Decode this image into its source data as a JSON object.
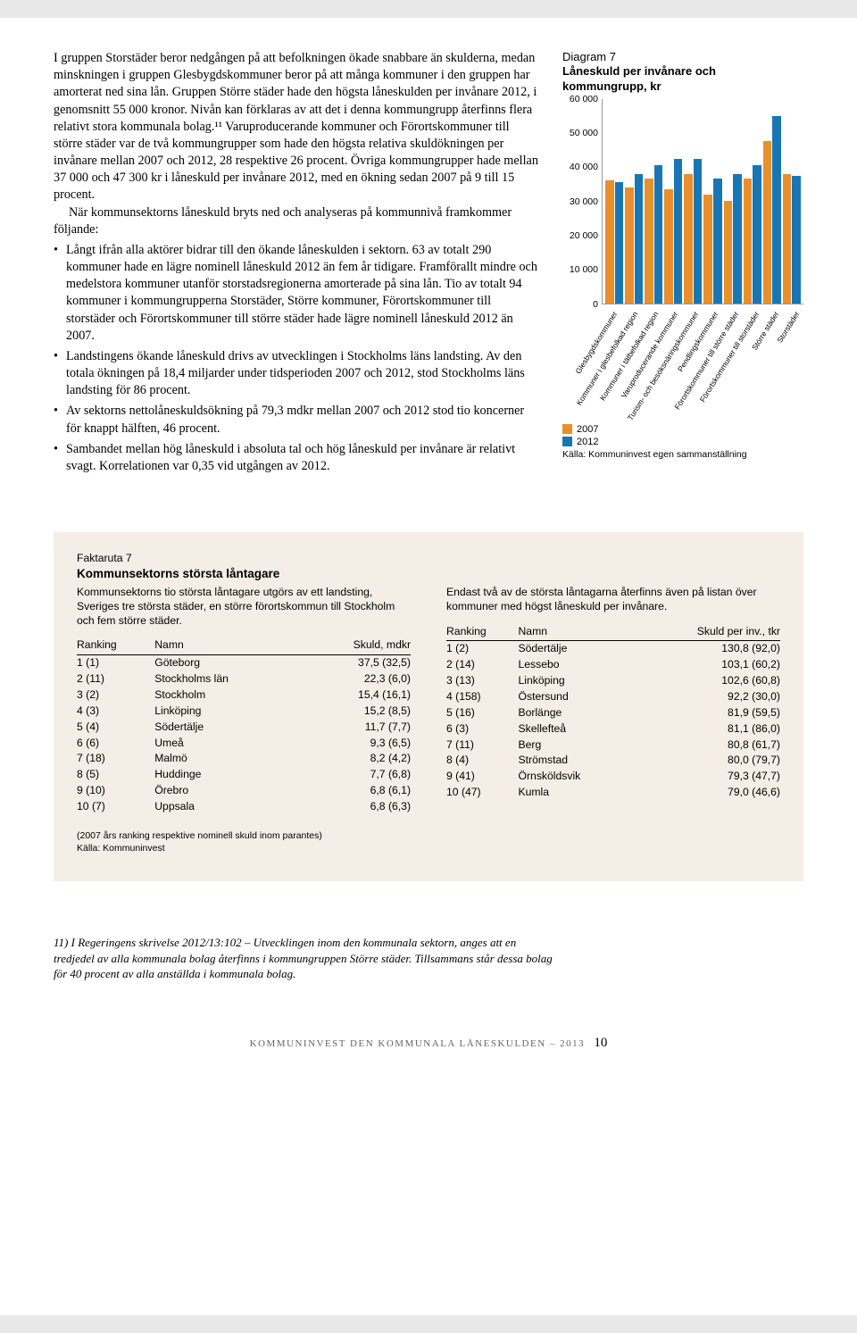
{
  "body": {
    "p1": "I gruppen Storstäder beror nedgången på att befolkningen ökade snabbare än skulderna, medan minskningen i gruppen Glesbygdskommuner beror på att många kommuner i den gruppen har amorterat ned sina lån. Gruppen Större städer hade den högsta låneskulden per invånare 2012, i genomsnitt 55 000 kronor. Nivån kan förklaras av att det i denna kommungrupp återfinns flera relativt stora kommunala bolag.¹¹ Varuproducerande kommuner och Förortskommuner till större städer var de två kommungrupper som hade den högsta relativa skuldökningen per invånare mellan 2007 och 2012, 28 respektive 26 procent. Övriga kommungrupper hade mellan 37 000 och 47 300 kr i låneskuld per invånare 2012, med en ökning sedan 2007 på 9 till 15 procent.",
    "p2": "När kommunsektorns låneskuld bryts ned och analyseras på kommunnivå framkommer följande:",
    "li1": "Långt ifrån alla aktörer bidrar till den ökande låneskulden i sektorn. 63 av totalt 290 kommuner hade en lägre nominell låneskuld 2012 än fem år tidigare. Framförallt mindre och medelstora kommuner utanför storstadsregionerna amorterade på sina lån. Tio av totalt 94 kommuner i kommungrupperna Storstäder, Större kommuner, Förortskommuner till storstäder och Förortskommuner till större städer hade lägre nominell låneskuld 2012 än 2007.",
    "li2": "Landstingens ökande låneskuld drivs av utvecklingen i Stockholms läns landsting. Av den totala ökningen på 18,4 miljarder under tidsperioden 2007 och 2012, stod Stockholms läns landsting för 86 procent.",
    "li3": "Av sektorns nettolåneskuldsökning på 79,3 mdkr mellan 2007 och 2012 stod tio koncerner för knappt hälften, 46 procent.",
    "li4": "Sambandet mellan hög låneskuld i absoluta tal och hög låneskuld per invånare är relativt svagt. Korrelationen var 0,35 vid utgången av 2012."
  },
  "chart": {
    "diagram_label": "Diagram 7",
    "title": "Låneskuld per invånare och kommungrupp, kr",
    "ymax": 60000,
    "yticks": [
      0,
      10000,
      20000,
      30000,
      40000,
      50000,
      60000
    ],
    "categories": [
      "Glesbygdskommuner",
      "Kommuner i glesbefolkad region",
      "Kommuner i tätbefolkad region",
      "Varuproducerande kommuner",
      "Turism- och besöksnäringskommuner",
      "Pendlingskommuner",
      "Förortskommuner till större städer",
      "Förortskommuner till storstäder",
      "Större städer",
      "Storstäder"
    ],
    "series2007": [
      36000,
      34000,
      36500,
      33500,
      38000,
      32000,
      30000,
      36500,
      47500,
      38000
    ],
    "series2012": [
      35500,
      38000,
      40500,
      42500,
      42500,
      36500,
      38000,
      40500,
      55000,
      37500
    ],
    "color2007": "#e98f2b",
    "color2012": "#1976b5",
    "legend_2007": "2007",
    "legend_2012": "2012",
    "source": "Källa: Kommuninvest egen sammanställning",
    "bg": "#ffffff",
    "axis_color": "#999999"
  },
  "faktaruta": {
    "num": "Faktaruta 7",
    "title": "Kommunsektorns största låntagare",
    "intro_left": "Kommunsektorns tio största låntagare utgörs av ett landsting, Sveriges tre största städer, en större förortskommun till Stockholm och fem större städer.",
    "intro_right": "Endast två av de största låntagarna återfinns även på listan över kommuner med högst låneskuld per invånare.",
    "table_left": {
      "h1": "Ranking",
      "h2": "Namn",
      "h3": "Skuld, mdkr",
      "rows": [
        [
          "1 (1)",
          "Göteborg",
          "37,5 (32,5)"
        ],
        [
          "2 (11)",
          "Stockholms län",
          "22,3 (6,0)"
        ],
        [
          "3 (2)",
          "Stockholm",
          "15,4 (16,1)"
        ],
        [
          "4 (3)",
          "Linköping",
          "15,2 (8,5)"
        ],
        [
          "5 (4)",
          "Södertälje",
          "11,7 (7,7)"
        ],
        [
          "6 (6)",
          "Umeå",
          "9,3 (6,5)"
        ],
        [
          "7 (18)",
          "Malmö",
          "8,2 (4,2)"
        ],
        [
          "8 (5)",
          "Huddinge",
          "7,7 (6,8)"
        ],
        [
          "9 (10)",
          "Örebro",
          "6,8 (6,1)"
        ],
        [
          "10 (7)",
          "Uppsala",
          "6,8 (6,3)"
        ]
      ]
    },
    "table_right": {
      "h1": "Ranking",
      "h2": "Namn",
      "h3": "Skuld per inv., tkr",
      "rows": [
        [
          "1 (2)",
          "Södertälje",
          "130,8 (92,0)"
        ],
        [
          "2 (14)",
          "Lessebo",
          "103,1 (60,2)"
        ],
        [
          "3 (13)",
          "Linköping",
          "102,6 (60,8)"
        ],
        [
          "4 (158)",
          "Östersund",
          "92,2 (30,0)"
        ],
        [
          "5 (16)",
          "Borlänge",
          "81,9 (59,5)"
        ],
        [
          "6 (3)",
          "Skellefteå",
          "81,1 (86,0)"
        ],
        [
          "7 (11)",
          "Berg",
          "80,8 (61,7)"
        ],
        [
          "8 (4)",
          "Strömstad",
          "80,0 (79,7)"
        ],
        [
          "9 (41)",
          "Örnsköldsvik",
          "79,3 (47,7)"
        ],
        [
          "10 (47)",
          "Kumla",
          "79,0 (46,6)"
        ]
      ]
    },
    "foot1": "(2007 års ranking respektive nominell skuld inom parantes)",
    "foot2": "Källa: Kommuninvest"
  },
  "footnote": "11) I Regeringens skrivelse 2012/13:102 – Utvecklingen inom den kommunala sektorn, anges att en tredjedel av alla kommunala bolag återfinns i kommungruppen Större städer. Tillsammans står dessa bolag för 40 procent av alla anställda i kommunala bolag.",
  "footer": {
    "text": "KOMMUNINVEST DEN KOMMUNALA LÅNESKULDEN – 2013",
    "page": "10"
  }
}
